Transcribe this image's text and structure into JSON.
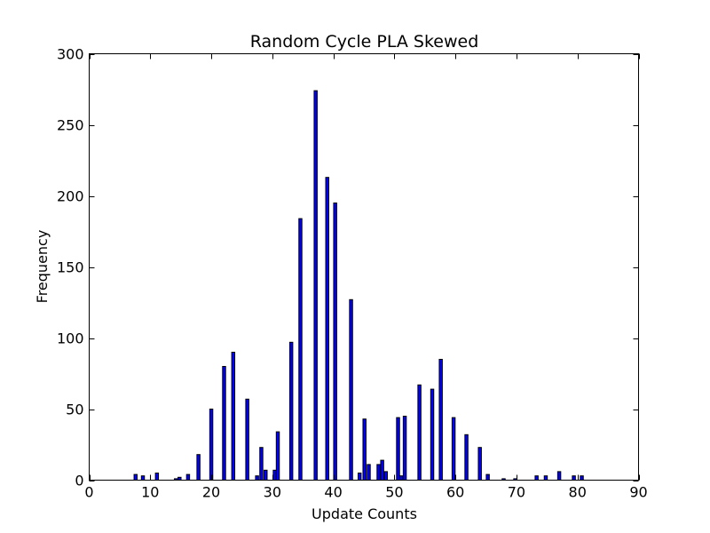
{
  "chart_data": {
    "type": "bar",
    "title": "Random Cycle PLA Skewed",
    "xlabel": "Update Counts",
    "ylabel": "Frequency",
    "xlim": [
      0,
      90
    ],
    "ylim": [
      0,
      300
    ],
    "xticks": [
      0,
      10,
      20,
      30,
      40,
      50,
      60,
      70,
      80,
      90
    ],
    "yticks": [
      0,
      50,
      100,
      150,
      200,
      250,
      300
    ],
    "bin_width": 0.5,
    "grid": false,
    "colors": {
      "bar_fill": "#0000ff",
      "bar_edge": "#000000",
      "axes": "#000000",
      "background": "#ffffff"
    },
    "x": [
      7.6,
      8.8,
      11.1,
      14.2,
      14.8,
      16.2,
      17.9,
      20.0,
      22.1,
      23.6,
      25.9,
      27.5,
      28.2,
      28.9,
      30.4,
      30.9,
      33.1,
      34.6,
      37.1,
      39.0,
      40.3,
      42.9,
      44.3,
      45.1,
      45.8,
      47.4,
      48.0,
      48.6,
      50.6,
      51.1,
      51.7,
      54.1,
      56.2,
      57.6,
      59.7,
      61.8,
      64.0,
      65.3,
      67.9,
      69.8,
      73.3,
      74.8,
      77.0,
      79.4,
      80.7
    ],
    "values": [
      4,
      3,
      5,
      1,
      2,
      4,
      18,
      50,
      80,
      90,
      57,
      3,
      23,
      7,
      7,
      34,
      97,
      184,
      274,
      213,
      195,
      127,
      5,
      43,
      11,
      11,
      14,
      6,
      44,
      3,
      45,
      67,
      64,
      85,
      44,
      32,
      23,
      4,
      1,
      1,
      3,
      3,
      6,
      3,
      3
    ]
  }
}
